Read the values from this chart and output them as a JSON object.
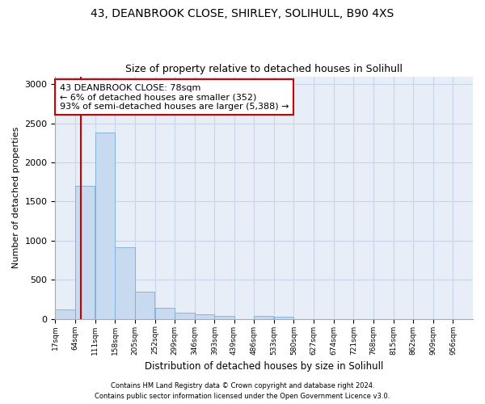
{
  "title1": "43, DEANBROOK CLOSE, SHIRLEY, SOLIHULL, B90 4XS",
  "title2": "Size of property relative to detached houses in Solihull",
  "xlabel": "Distribution of detached houses by size in Solihull",
  "ylabel": "Number of detached properties",
  "footer1": "Contains HM Land Registry data © Crown copyright and database right 2024.",
  "footer2": "Contains public sector information licensed under the Open Government Licence v3.0.",
  "bin_labels": [
    "17sqm",
    "64sqm",
    "111sqm",
    "158sqm",
    "205sqm",
    "252sqm",
    "299sqm",
    "346sqm",
    "393sqm",
    "439sqm",
    "486sqm",
    "533sqm",
    "580sqm",
    "627sqm",
    "674sqm",
    "721sqm",
    "768sqm",
    "815sqm",
    "862sqm",
    "909sqm",
    "956sqm"
  ],
  "bin_edges": [
    17,
    64,
    111,
    158,
    205,
    252,
    299,
    346,
    393,
    439,
    486,
    533,
    580,
    627,
    674,
    721,
    768,
    815,
    862,
    909,
    956
  ],
  "bar_heights": [
    120,
    1700,
    2380,
    920,
    350,
    145,
    75,
    55,
    35,
    0,
    35,
    30,
    0,
    0,
    0,
    0,
    0,
    0,
    0,
    0
  ],
  "bar_color": "#c8daf0",
  "bar_edgecolor": "#7aadd4",
  "property_size": 78,
  "vline_color": "#cc0000",
  "annotation_text": "43 DEANBROOK CLOSE: 78sqm\n← 6% of detached houses are smaller (352)\n93% of semi-detached houses are larger (5,388) →",
  "annotation_box_color": "#cc0000",
  "annotation_bg_color": "#ffffff",
  "ylim": [
    0,
    3100
  ],
  "grid_color": "#c8d4e8",
  "bg_color": "#e8eef8",
  "fig_bg_color": "#ffffff"
}
